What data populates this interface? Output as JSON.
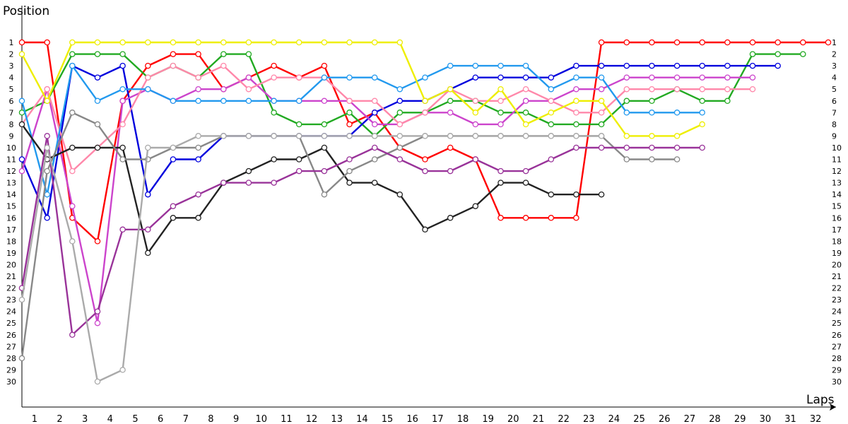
{
  "chart_data": {
    "type": "line",
    "ylabel": "Position",
    "xlabel": "Laps",
    "x_ticks": [
      1,
      2,
      3,
      4,
      5,
      6,
      7,
      8,
      9,
      10,
      11,
      12,
      13,
      14,
      15,
      16,
      17,
      18,
      19,
      20,
      21,
      22,
      23,
      24,
      25,
      26,
      27,
      28,
      29,
      30,
      31,
      32
    ],
    "y_ticks": [
      1,
      2,
      3,
      4,
      5,
      6,
      7,
      8,
      9,
      10,
      11,
      12,
      13,
      14,
      15,
      16,
      17,
      18,
      19,
      20,
      21,
      22,
      23,
      24,
      25,
      26,
      27,
      28,
      29,
      30
    ],
    "xlim": [
      0,
      32
    ],
    "ylim": [
      1,
      30
    ],
    "y_inverted": true,
    "grid": false,
    "marker": "circle",
    "series": [
      {
        "color": "#ff0000",
        "marker_fill": "#ffffff",
        "positions": [
          1,
          1,
          16,
          18,
          6,
          3,
          2,
          2,
          5,
          4,
          3,
          4,
          3,
          8,
          7,
          10,
          11,
          10,
          11,
          16,
          16,
          16,
          16,
          1,
          1,
          1,
          1,
          1,
          1,
          1,
          1,
          1,
          1
        ]
      },
      {
        "color": "#22aa22",
        "marker_fill": "#ffffff",
        "positions": [
          7,
          6,
          2,
          2,
          2,
          4,
          3,
          4,
          2,
          2,
          7,
          8,
          8,
          7,
          9,
          7,
          7,
          6,
          6,
          7,
          7,
          8,
          8,
          8,
          6,
          6,
          5,
          6,
          6,
          2,
          2,
          2
        ]
      },
      {
        "color": "#0000dd",
        "marker_fill": "#ffffff",
        "positions": [
          11,
          16,
          3,
          4,
          3,
          14,
          11,
          11,
          9,
          9,
          9,
          9,
          9,
          9,
          7,
          6,
          6,
          5,
          4,
          4,
          4,
          4,
          3,
          3,
          3,
          3,
          3,
          3,
          3,
          3,
          3
        ]
      },
      {
        "color": "#cc44cc",
        "marker_fill": "#ffffff",
        "positions": [
          12,
          5,
          15,
          25,
          6,
          5,
          6,
          5,
          5,
          4,
          6,
          6,
          6,
          6,
          8,
          8,
          7,
          7,
          8,
          8,
          6,
          6,
          5,
          5,
          4,
          4,
          4,
          4,
          4,
          4
        ]
      },
      {
        "color": "#ff88aa",
        "marker_fill": "#ffffff",
        "positions": [
          8,
          5,
          12,
          10,
          8,
          4,
          3,
          4,
          3,
          5,
          4,
          4,
          4,
          6,
          6,
          8,
          7,
          5,
          6,
          6,
          5,
          6,
          7,
          7,
          5,
          5,
          5,
          5,
          5,
          5
        ]
      },
      {
        "color": "#2299ee",
        "marker_fill": "#ffffff",
        "positions": [
          6,
          14,
          3,
          6,
          5,
          5,
          6,
          6,
          6,
          6,
          6,
          6,
          4,
          4,
          4,
          5,
          4,
          3,
          3,
          3,
          3,
          5,
          4,
          4,
          7,
          7,
          7,
          7
        ]
      },
      {
        "color": "#eeee00",
        "marker_fill": "#ffffff",
        "positions": [
          2,
          6,
          1,
          1,
          1,
          1,
          1,
          1,
          1,
          1,
          1,
          1,
          1,
          1,
          1,
          1,
          6,
          5,
          7,
          5,
          8,
          7,
          6,
          6,
          9,
          9,
          9,
          8
        ]
      },
      {
        "color": "#222222",
        "marker_fill": "#ffffff",
        "positions": [
          8,
          11,
          10,
          10,
          10,
          19,
          16,
          16,
          13,
          12,
          11,
          11,
          10,
          13,
          13,
          14,
          17,
          16,
          15,
          13,
          13,
          14,
          14,
          14
        ]
      },
      {
        "color": "#888888",
        "marker_fill": "#ffffff",
        "positions": [
          28,
          12,
          7,
          8,
          11,
          11,
          10,
          10,
          9,
          9,
          9,
          9,
          14,
          12,
          11,
          10,
          9,
          9,
          9,
          9,
          9,
          9,
          9,
          9,
          11,
          11,
          11
        ]
      },
      {
        "color": "#993399",
        "marker_fill": "#ffffff",
        "positions": [
          22,
          9,
          26,
          24,
          17,
          17,
          15,
          14,
          13,
          13,
          13,
          12,
          12,
          11,
          10,
          11,
          12,
          12,
          11,
          12,
          12,
          11,
          10,
          10,
          10,
          10,
          10,
          10
        ]
      },
      {
        "color": "#aaaaaa",
        "marker_fill": "#ffffff",
        "positions": [
          23,
          10,
          18,
          30,
          29,
          10,
          10,
          9,
          9,
          9,
          9,
          9,
          9,
          9,
          9,
          9,
          9,
          9,
          9,
          9,
          9,
          9,
          9,
          9
        ]
      }
    ]
  }
}
